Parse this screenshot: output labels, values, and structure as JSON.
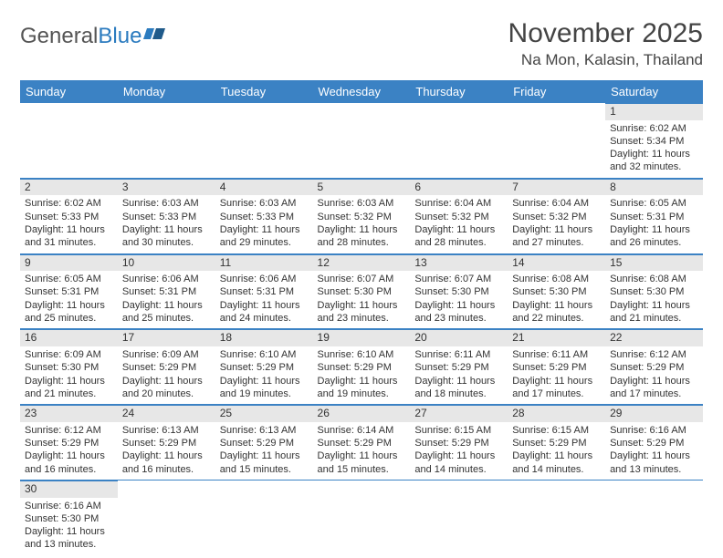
{
  "logo": {
    "general": "General",
    "blue": "Blue"
  },
  "title": "November 2025",
  "subtitle": "Na Mon, Kalasin, Thailand",
  "header_bg": "#3b82c4",
  "daynum_bg": "#e7e7e7",
  "border_color": "#3b82c4",
  "days": [
    "Sunday",
    "Monday",
    "Tuesday",
    "Wednesday",
    "Thursday",
    "Friday",
    "Saturday"
  ],
  "weeks": [
    [
      null,
      null,
      null,
      null,
      null,
      null,
      {
        "n": "1",
        "sunrise": "Sunrise: 6:02 AM",
        "sunset": "Sunset: 5:34 PM",
        "d1": "Daylight: 11 hours",
        "d2": "and 32 minutes."
      }
    ],
    [
      {
        "n": "2",
        "sunrise": "Sunrise: 6:02 AM",
        "sunset": "Sunset: 5:33 PM",
        "d1": "Daylight: 11 hours",
        "d2": "and 31 minutes."
      },
      {
        "n": "3",
        "sunrise": "Sunrise: 6:03 AM",
        "sunset": "Sunset: 5:33 PM",
        "d1": "Daylight: 11 hours",
        "d2": "and 30 minutes."
      },
      {
        "n": "4",
        "sunrise": "Sunrise: 6:03 AM",
        "sunset": "Sunset: 5:33 PM",
        "d1": "Daylight: 11 hours",
        "d2": "and 29 minutes."
      },
      {
        "n": "5",
        "sunrise": "Sunrise: 6:03 AM",
        "sunset": "Sunset: 5:32 PM",
        "d1": "Daylight: 11 hours",
        "d2": "and 28 minutes."
      },
      {
        "n": "6",
        "sunrise": "Sunrise: 6:04 AM",
        "sunset": "Sunset: 5:32 PM",
        "d1": "Daylight: 11 hours",
        "d2": "and 28 minutes."
      },
      {
        "n": "7",
        "sunrise": "Sunrise: 6:04 AM",
        "sunset": "Sunset: 5:32 PM",
        "d1": "Daylight: 11 hours",
        "d2": "and 27 minutes."
      },
      {
        "n": "8",
        "sunrise": "Sunrise: 6:05 AM",
        "sunset": "Sunset: 5:31 PM",
        "d1": "Daylight: 11 hours",
        "d2": "and 26 minutes."
      }
    ],
    [
      {
        "n": "9",
        "sunrise": "Sunrise: 6:05 AM",
        "sunset": "Sunset: 5:31 PM",
        "d1": "Daylight: 11 hours",
        "d2": "and 25 minutes."
      },
      {
        "n": "10",
        "sunrise": "Sunrise: 6:06 AM",
        "sunset": "Sunset: 5:31 PM",
        "d1": "Daylight: 11 hours",
        "d2": "and 25 minutes."
      },
      {
        "n": "11",
        "sunrise": "Sunrise: 6:06 AM",
        "sunset": "Sunset: 5:31 PM",
        "d1": "Daylight: 11 hours",
        "d2": "and 24 minutes."
      },
      {
        "n": "12",
        "sunrise": "Sunrise: 6:07 AM",
        "sunset": "Sunset: 5:30 PM",
        "d1": "Daylight: 11 hours",
        "d2": "and 23 minutes."
      },
      {
        "n": "13",
        "sunrise": "Sunrise: 6:07 AM",
        "sunset": "Sunset: 5:30 PM",
        "d1": "Daylight: 11 hours",
        "d2": "and 23 minutes."
      },
      {
        "n": "14",
        "sunrise": "Sunrise: 6:08 AM",
        "sunset": "Sunset: 5:30 PM",
        "d1": "Daylight: 11 hours",
        "d2": "and 22 minutes."
      },
      {
        "n": "15",
        "sunrise": "Sunrise: 6:08 AM",
        "sunset": "Sunset: 5:30 PM",
        "d1": "Daylight: 11 hours",
        "d2": "and 21 minutes."
      }
    ],
    [
      {
        "n": "16",
        "sunrise": "Sunrise: 6:09 AM",
        "sunset": "Sunset: 5:30 PM",
        "d1": "Daylight: 11 hours",
        "d2": "and 21 minutes."
      },
      {
        "n": "17",
        "sunrise": "Sunrise: 6:09 AM",
        "sunset": "Sunset: 5:29 PM",
        "d1": "Daylight: 11 hours",
        "d2": "and 20 minutes."
      },
      {
        "n": "18",
        "sunrise": "Sunrise: 6:10 AM",
        "sunset": "Sunset: 5:29 PM",
        "d1": "Daylight: 11 hours",
        "d2": "and 19 minutes."
      },
      {
        "n": "19",
        "sunrise": "Sunrise: 6:10 AM",
        "sunset": "Sunset: 5:29 PM",
        "d1": "Daylight: 11 hours",
        "d2": "and 19 minutes."
      },
      {
        "n": "20",
        "sunrise": "Sunrise: 6:11 AM",
        "sunset": "Sunset: 5:29 PM",
        "d1": "Daylight: 11 hours",
        "d2": "and 18 minutes."
      },
      {
        "n": "21",
        "sunrise": "Sunrise: 6:11 AM",
        "sunset": "Sunset: 5:29 PM",
        "d1": "Daylight: 11 hours",
        "d2": "and 17 minutes."
      },
      {
        "n": "22",
        "sunrise": "Sunrise: 6:12 AM",
        "sunset": "Sunset: 5:29 PM",
        "d1": "Daylight: 11 hours",
        "d2": "and 17 minutes."
      }
    ],
    [
      {
        "n": "23",
        "sunrise": "Sunrise: 6:12 AM",
        "sunset": "Sunset: 5:29 PM",
        "d1": "Daylight: 11 hours",
        "d2": "and 16 minutes."
      },
      {
        "n": "24",
        "sunrise": "Sunrise: 6:13 AM",
        "sunset": "Sunset: 5:29 PM",
        "d1": "Daylight: 11 hours",
        "d2": "and 16 minutes."
      },
      {
        "n": "25",
        "sunrise": "Sunrise: 6:13 AM",
        "sunset": "Sunset: 5:29 PM",
        "d1": "Daylight: 11 hours",
        "d2": "and 15 minutes."
      },
      {
        "n": "26",
        "sunrise": "Sunrise: 6:14 AM",
        "sunset": "Sunset: 5:29 PM",
        "d1": "Daylight: 11 hours",
        "d2": "and 15 minutes."
      },
      {
        "n": "27",
        "sunrise": "Sunrise: 6:15 AM",
        "sunset": "Sunset: 5:29 PM",
        "d1": "Daylight: 11 hours",
        "d2": "and 14 minutes."
      },
      {
        "n": "28",
        "sunrise": "Sunrise: 6:15 AM",
        "sunset": "Sunset: 5:29 PM",
        "d1": "Daylight: 11 hours",
        "d2": "and 14 minutes."
      },
      {
        "n": "29",
        "sunrise": "Sunrise: 6:16 AM",
        "sunset": "Sunset: 5:29 PM",
        "d1": "Daylight: 11 hours",
        "d2": "and 13 minutes."
      }
    ],
    [
      {
        "n": "30",
        "sunrise": "Sunrise: 6:16 AM",
        "sunset": "Sunset: 5:30 PM",
        "d1": "Daylight: 11 hours",
        "d2": "and 13 minutes."
      },
      null,
      null,
      null,
      null,
      null,
      null
    ]
  ]
}
